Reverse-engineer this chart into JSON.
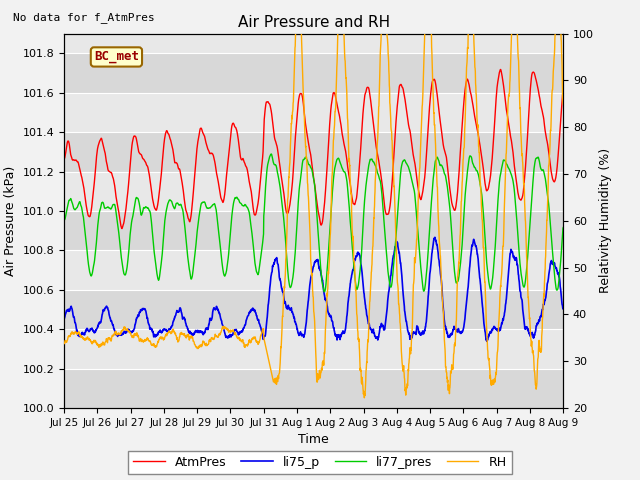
{
  "title": "Air Pressure and RH",
  "top_left_note": "No data for f_AtmPres",
  "box_label": "BC_met",
  "xlabel": "Time",
  "ylabel_left": "Air Pressure (kPa)",
  "ylabel_right": "Relativity Humidity (%)",
  "ylim_left": [
    100.0,
    101.9
  ],
  "ylim_right": [
    20,
    100
  ],
  "yticks_left": [
    100.0,
    100.2,
    100.4,
    100.6,
    100.8,
    101.0,
    101.2,
    101.4,
    101.6,
    101.8
  ],
  "yticks_right": [
    20,
    30,
    40,
    50,
    60,
    70,
    80,
    90,
    100
  ],
  "line_colors": {
    "AtmPres": "#ff0000",
    "li75_p": "#0000ee",
    "li77_pres": "#00cc00",
    "RH": "#ffaa00"
  },
  "xtick_labels": [
    "Jul 25",
    "Jul 26",
    "Jul 27",
    "Jul 28",
    "Jul 29",
    "Jul 30",
    "Jul 31",
    "Aug 1",
    "Aug 2",
    "Aug 3",
    "Aug 4",
    "Aug 5",
    "Aug 6",
    "Aug 7",
    "Aug 8",
    "Aug 9"
  ],
  "n_points": 2160,
  "bg_color": "#f2f2f2",
  "band_colors": [
    "#e8e8e8",
    "#d8d8d8"
  ]
}
